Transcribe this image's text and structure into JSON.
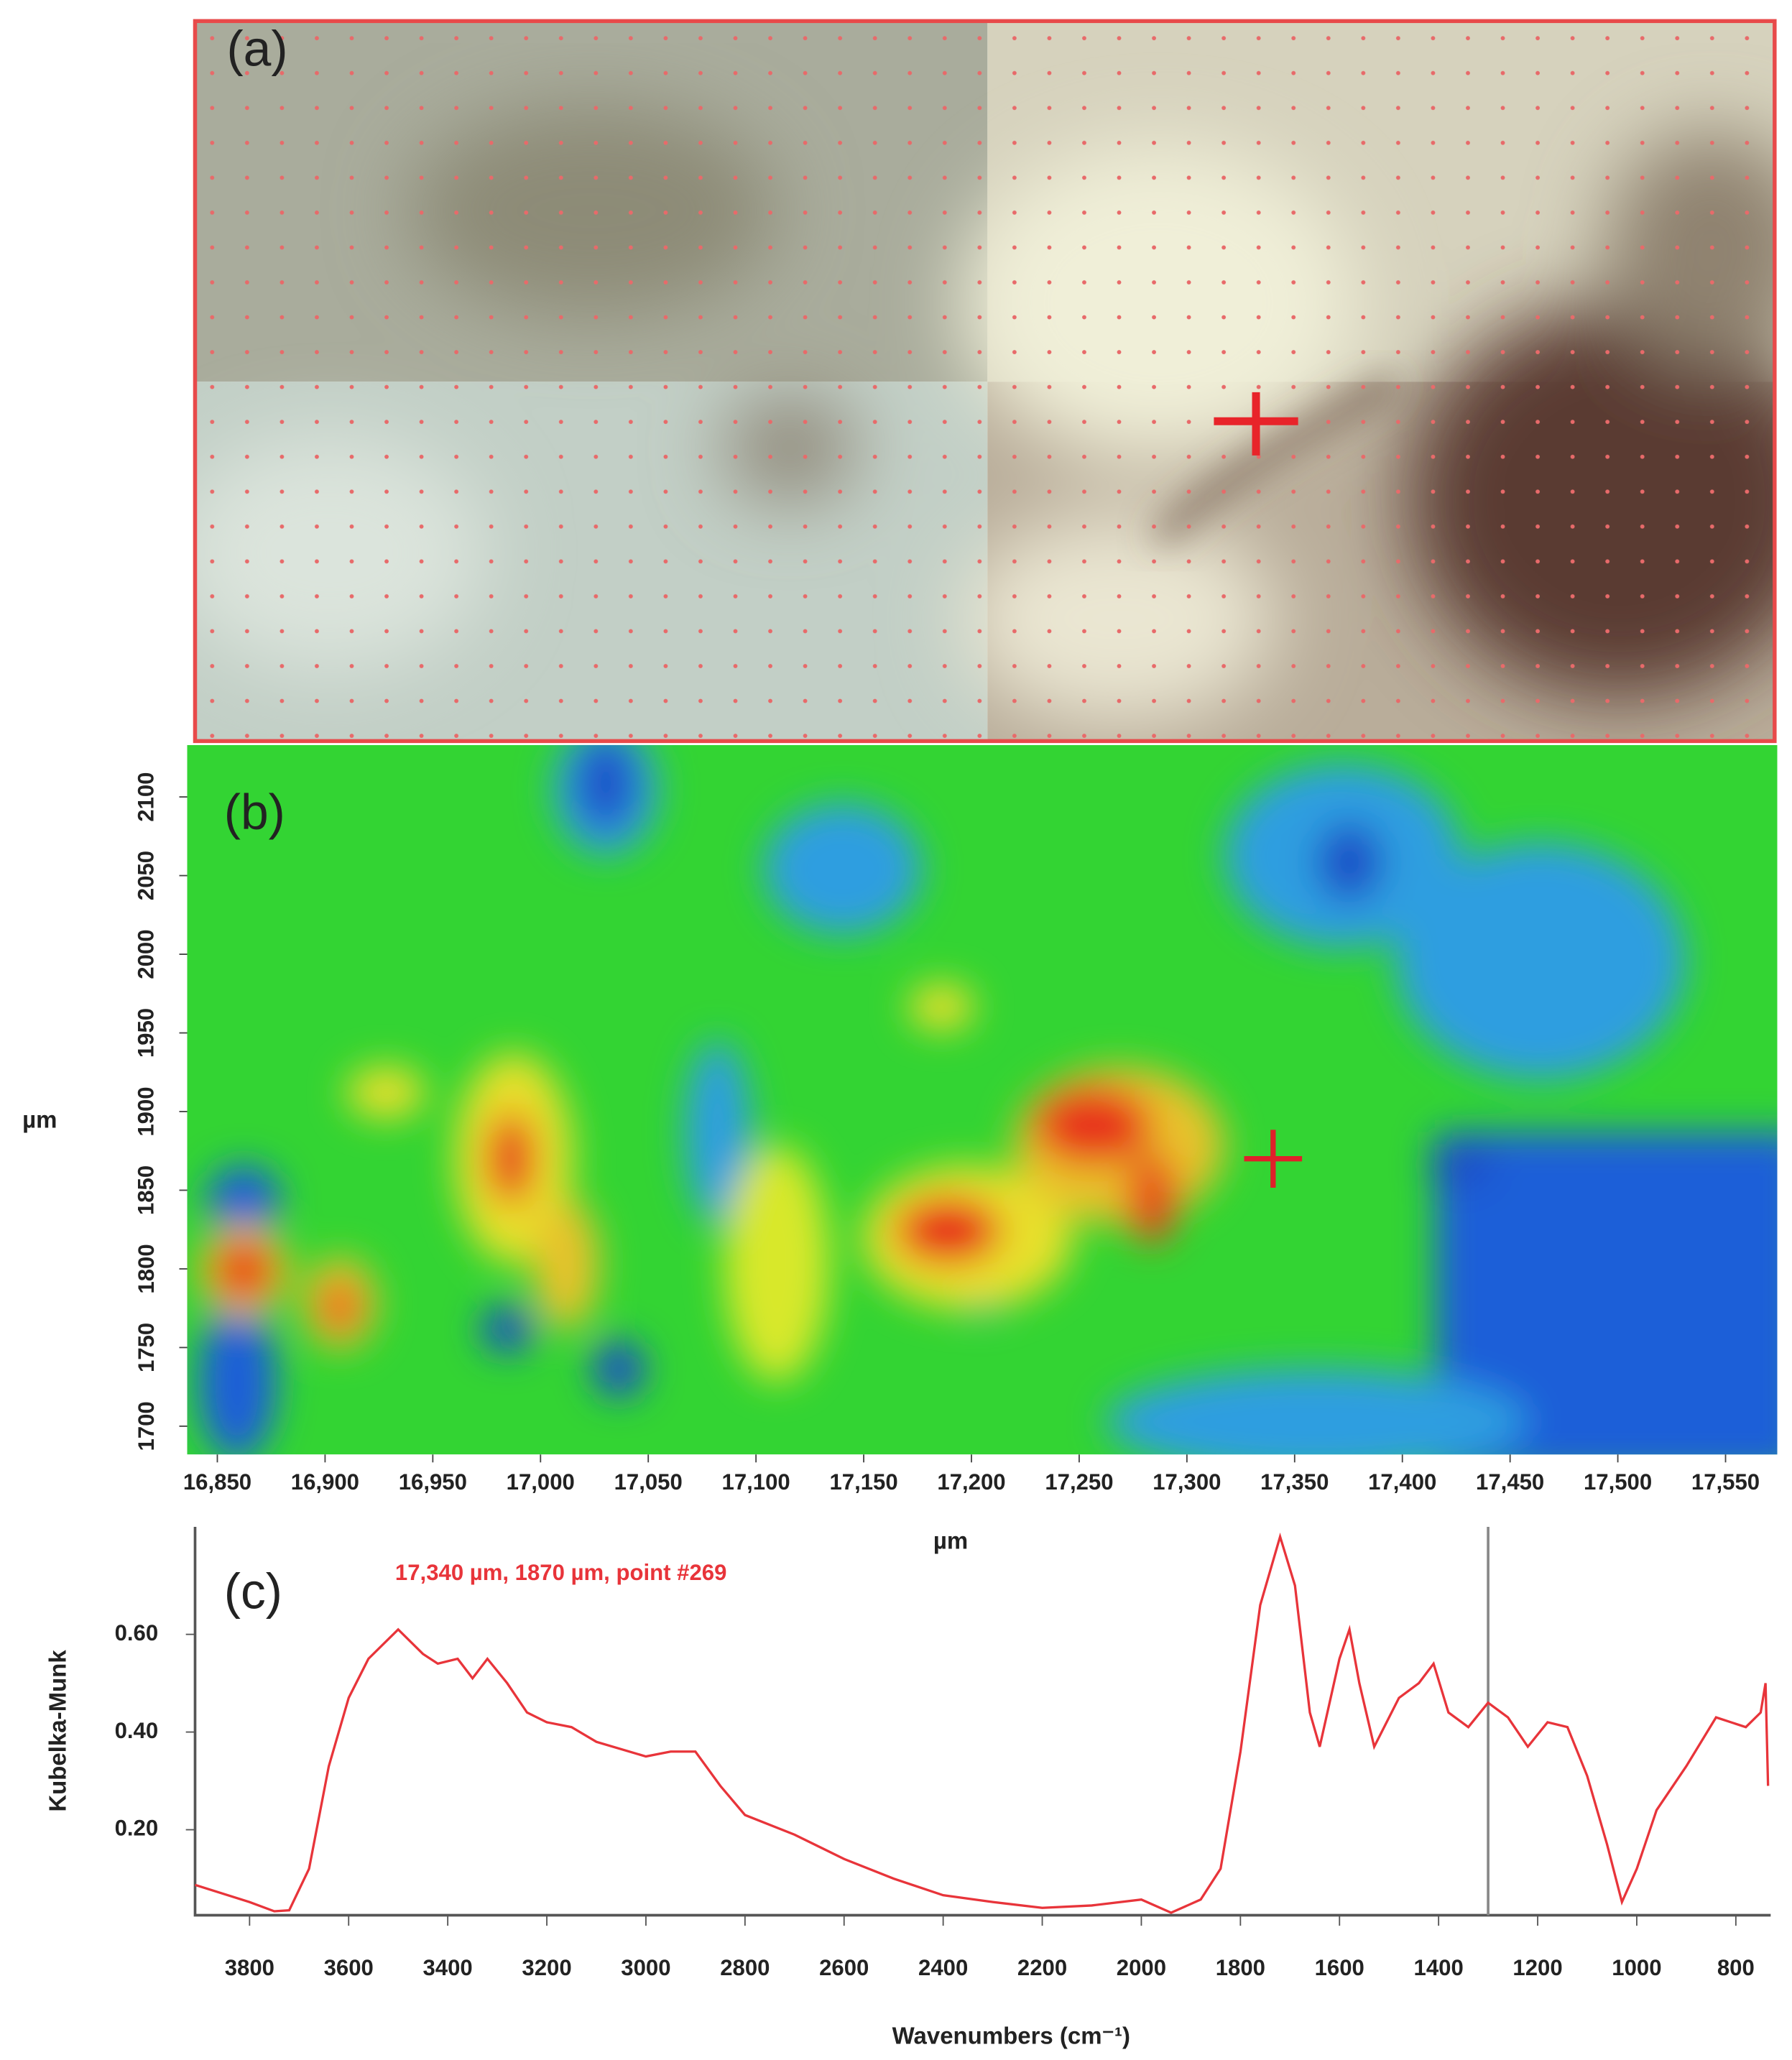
{
  "chart_data": [
    {
      "type": "image",
      "label": "(a)"
    },
    {
      "type": "heatmap",
      "label": "(b)",
      "xlabel": "µm",
      "ylabel": "µm",
      "xlim": [
        16836,
        17574
      ],
      "ylim": [
        1682,
        2133
      ],
      "xticks": [
        {
          "value": 16850,
          "label": "16,850"
        },
        {
          "value": 16900,
          "label": "16,900"
        },
        {
          "value": 16950,
          "label": "16,950"
        },
        {
          "value": 17000,
          "label": "17,000"
        },
        {
          "value": 17050,
          "label": "17,050"
        },
        {
          "value": 17100,
          "label": "17,100"
        },
        {
          "value": 17150,
          "label": "17,150"
        },
        {
          "value": 17200,
          "label": "17,200"
        },
        {
          "value": 17250,
          "label": "17,250"
        },
        {
          "value": 17300,
          "label": "17,300"
        },
        {
          "value": 17350,
          "label": "17,350"
        },
        {
          "value": 17400,
          "label": "17,400"
        },
        {
          "value": 17450,
          "label": "17,450"
        },
        {
          "value": 17500,
          "label": "17,500"
        },
        {
          "value": 17550,
          "label": "17,550"
        }
      ],
      "yticks": [
        1700,
        1750,
        1800,
        1850,
        1900,
        1950,
        2000,
        2050,
        2100
      ],
      "marker": {
        "x": 17340,
        "y": 1870
      }
    },
    {
      "type": "line",
      "label": "(c)",
      "annotation": "17,340 µm, 1870 µm, point #269",
      "xlabel": "Wavenumbers (cm⁻¹)",
      "ylabel": "Kubelka-Munk",
      "xlim": [
        3910,
        735
      ],
      "ylim": [
        0.025,
        0.82
      ],
      "xticks": [
        3800,
        3600,
        3400,
        3200,
        3000,
        2800,
        2600,
        2400,
        2200,
        2000,
        1800,
        1600,
        1400,
        1200,
        1000,
        800
      ],
      "yticks": [
        {
          "value": 0.2,
          "label": "0.20"
        },
        {
          "value": 0.4,
          "label": "0.40"
        },
        {
          "value": 0.6,
          "label": "0.60"
        }
      ],
      "cursor": 1300,
      "color": "#e8343a",
      "x": [
        3910,
        3800,
        3750,
        3720,
        3680,
        3640,
        3600,
        3560,
        3500,
        3450,
        3420,
        3380,
        3350,
        3320,
        3280,
        3240,
        3200,
        3150,
        3100,
        3000,
        2950,
        2900,
        2850,
        2800,
        2700,
        2600,
        2500,
        2400,
        2300,
        2200,
        2100,
        2000,
        1940,
        1880,
        1840,
        1800,
        1760,
        1720,
        1690,
        1660,
        1640,
        1600,
        1580,
        1560,
        1530,
        1480,
        1440,
        1410,
        1380,
        1340,
        1300,
        1260,
        1220,
        1180,
        1140,
        1100,
        1060,
        1030,
        1000,
        960,
        900,
        840,
        780,
        750,
        740,
        735
      ],
      "values": [
        0.087,
        0.052,
        0.033,
        0.035,
        0.12,
        0.33,
        0.47,
        0.55,
        0.61,
        0.56,
        0.54,
        0.55,
        0.51,
        0.55,
        0.5,
        0.44,
        0.42,
        0.41,
        0.38,
        0.35,
        0.36,
        0.36,
        0.29,
        0.23,
        0.19,
        0.14,
        0.1,
        0.066,
        0.052,
        0.04,
        0.045,
        0.057,
        0.03,
        0.057,
        0.12,
        0.36,
        0.66,
        0.8,
        0.7,
        0.44,
        0.37,
        0.55,
        0.61,
        0.5,
        0.37,
        0.47,
        0.5,
        0.54,
        0.44,
        0.41,
        0.46,
        0.43,
        0.37,
        0.42,
        0.41,
        0.31,
        0.17,
        0.052,
        0.12,
        0.24,
        0.33,
        0.43,
        0.41,
        0.44,
        0.5,
        0.29
      ]
    }
  ]
}
